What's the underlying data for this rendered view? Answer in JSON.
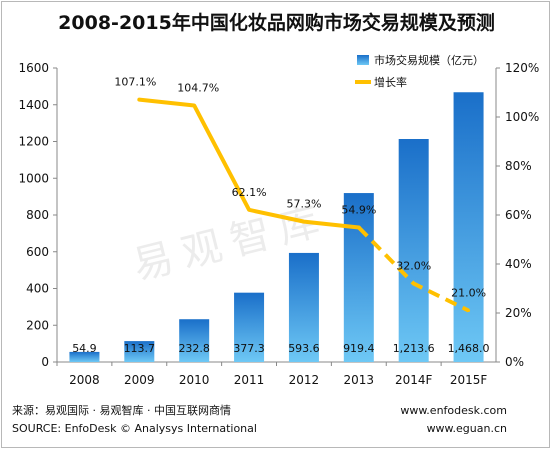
{
  "chart_data": {
    "type": "bar",
    "title": "2008-2015年中国化妆品网购市场交易规模及预测",
    "categories": [
      "2008",
      "2009",
      "2010",
      "2011",
      "2012",
      "2013",
      "2014F",
      "2015F"
    ],
    "series": [
      {
        "name": "市场交易规模（亿元）",
        "axis": "left",
        "type": "bar",
        "values": [
          54.9,
          113.7,
          232.8,
          377.3,
          593.6,
          919.4,
          1213.6,
          1468.0
        ],
        "labels": [
          "54.9",
          "113.7",
          "232.8",
          "377.3",
          "593.6",
          "919.4",
          "1,213.6",
          "1,468.0"
        ]
      },
      {
        "name": "增长率",
        "axis": "right",
        "type": "line",
        "x": [
          "2009",
          "2010",
          "2011",
          "2012",
          "2013",
          "2014F",
          "2015F"
        ],
        "values": [
          107.1,
          104.7,
          62.1,
          57.3,
          54.9,
          32.0,
          21.0
        ],
        "labels": [
          "107.1%",
          "104.7%",
          "62.1%",
          "57.3%",
          "54.9%",
          "32.0%",
          "21.0%"
        ],
        "dashed_from": "2013"
      }
    ],
    "y_left": {
      "ylim": [
        0,
        1600
      ],
      "ticks": [
        "0",
        "200",
        "400",
        "600",
        "800",
        "1000",
        "1200",
        "1400",
        "1600"
      ]
    },
    "y_right": {
      "ylim": [
        0,
        120
      ],
      "ticks": [
        "0%",
        "20%",
        "40%",
        "60%",
        "80%",
        "100%",
        "120%"
      ]
    },
    "legend_position": "top-right",
    "colors": {
      "bar_top": "#1a6fc9",
      "bar_bottom": "#6ec8f5",
      "line": "#ffc000",
      "axis": "#888888"
    }
  },
  "watermark": "易观智库",
  "footer": {
    "source_cn": "来源：易观国际 · 易观智库 · 中国互联网商情",
    "source_en": "SOURCE: EnfoDesk © Analysys International",
    "url1": "www.enfodesk.com",
    "url2": "www.eguan.cn"
  }
}
